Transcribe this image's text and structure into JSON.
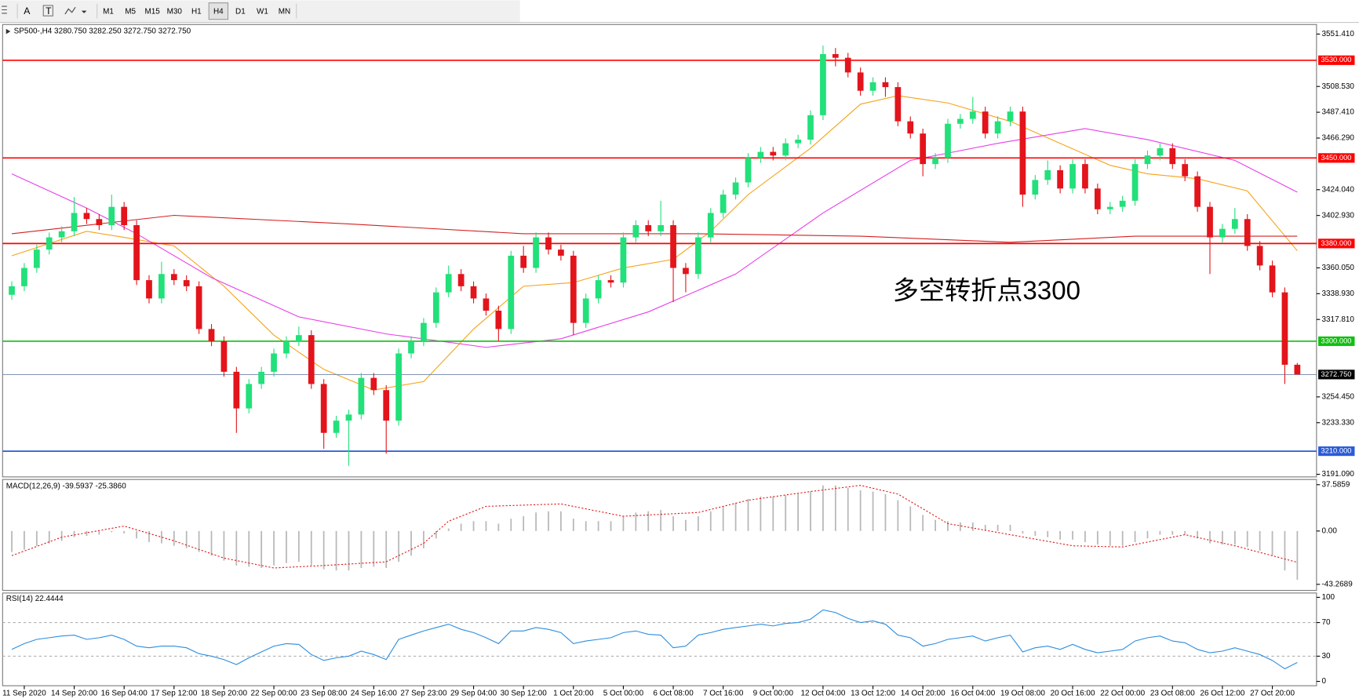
{
  "toolbar": {
    "tools": [
      "A",
      "T"
    ],
    "timeframes": [
      "M1",
      "M5",
      "M15",
      "M30",
      "H1",
      "H4",
      "D1",
      "W1",
      "MN"
    ],
    "active": "H4"
  },
  "chart_data": [
    {
      "type": "candlestick",
      "title": "SP500-,H4  3280.750 3282.250 3272.750 3272.750",
      "annotation": "多空转折点3300",
      "up_color": "#22e07a",
      "down_color": "#e3141b",
      "categories": [
        null,
        "11 Sep 2020",
        null,
        null,
        null,
        "14 Sep 20:00",
        null,
        null,
        null,
        "16 Sep 04:00",
        null,
        null,
        null,
        "17 Sep 12:00",
        null,
        null,
        null,
        "18 Sep 20:00",
        null,
        null,
        null,
        "22 Sep 00:00",
        null,
        null,
        null,
        "23 Sep 08:00",
        null,
        null,
        null,
        "24 Sep 16:00",
        null,
        null,
        null,
        "27 Sep 23:00",
        null,
        null,
        null,
        "29 Sep 04:00",
        null,
        null,
        null,
        "30 Sep 12:00",
        null,
        null,
        null,
        "1 Oct 20:00",
        null,
        null,
        null,
        "5 Oct 00:00",
        null,
        null,
        null,
        "6 Oct 08:00",
        null,
        null,
        null,
        "7 Oct 16:00",
        null,
        null,
        null,
        "9 Oct 00:00",
        null,
        null,
        null,
        "12 Oct 04:00",
        null,
        null,
        null,
        "13 Oct 12:00",
        null,
        null,
        null,
        "14 Oct 20:00",
        null,
        null,
        null,
        "16 Oct 04:00",
        null,
        null,
        null,
        "19 Oct 08:00",
        null,
        null,
        null,
        "20 Oct 16:00",
        null,
        null,
        null,
        "22 Oct 00:00",
        null,
        null,
        null,
        "23 Oct 08:00",
        null,
        null,
        null,
        "26 Oct 12:00",
        null,
        null,
        null,
        "27 Oct 20:00",
        null,
        null
      ],
      "open": [
        3338,
        3345,
        3360,
        3375,
        3385,
        3390,
        3405,
        3400,
        3395,
        3410,
        3395,
        3350,
        3335,
        3355,
        3350,
        3345,
        3310,
        3300,
        3275,
        3245,
        3265,
        3275,
        3290,
        3300,
        3305,
        3265,
        3225,
        3235,
        3240,
        3270,
        3260,
        3235,
        3290,
        3300,
        3315,
        3340,
        3355,
        3345,
        3335,
        3325,
        3310,
        3370,
        3360,
        3385,
        3375,
        3370,
        3315,
        3335,
        3350,
        3348,
        3385,
        3395,
        3390,
        3395,
        3360,
        3355,
        3385,
        3405,
        3420,
        3430,
        3450,
        3455,
        3452,
        3462,
        3465,
        3485,
        3535,
        3532,
        3520,
        3505,
        3512,
        3508,
        3480,
        3470,
        3445,
        3450,
        3478,
        3482,
        3488,
        3470,
        3480,
        3488,
        3420,
        3432,
        3440,
        3425,
        3445,
        3425,
        3408,
        3410,
        3415,
        3445,
        3452,
        3458,
        3445,
        3435,
        3410,
        3385,
        3392,
        3400,
        3378,
        3362,
        3340,
        3280.75
      ],
      "high": [
        3349,
        3364,
        3379,
        3389,
        3394,
        3418,
        3409,
        3404,
        3420,
        3414,
        3399,
        3354,
        3365,
        3359,
        3354,
        3349,
        3314,
        3304,
        3279,
        3269,
        3279,
        3294,
        3304,
        3312,
        3309,
        3269,
        3239,
        3244,
        3274,
        3274,
        3264,
        3294,
        3304,
        3319,
        3344,
        3362,
        3359,
        3349,
        3339,
        3329,
        3374,
        3378,
        3389,
        3389,
        3379,
        3374,
        3339,
        3354,
        3354,
        3389,
        3399,
        3399,
        3415,
        3399,
        3364,
        3389,
        3409,
        3424,
        3434,
        3454,
        3459,
        3459,
        3466,
        3469,
        3489,
        3542,
        3540,
        3536,
        3524,
        3516,
        3516,
        3512,
        3484,
        3474,
        3454,
        3482,
        3486,
        3500,
        3492,
        3484,
        3492,
        3492,
        3436,
        3448,
        3444,
        3449,
        3449,
        3429,
        3414,
        3419,
        3449,
        3456,
        3462,
        3462,
        3449,
        3439,
        3414,
        3396,
        3409,
        3404,
        3382,
        3366,
        3344,
        3282.25
      ],
      "low": [
        3334,
        3341,
        3356,
        3371,
        3381,
        3386,
        3396,
        3391,
        3391,
        3391,
        3346,
        3331,
        3331,
        3346,
        3341,
        3306,
        3296,
        3271,
        3225,
        3241,
        3261,
        3271,
        3286,
        3296,
        3261,
        3212,
        3221,
        3198,
        3236,
        3256,
        3208,
        3231,
        3286,
        3296,
        3311,
        3336,
        3341,
        3331,
        3321,
        3300,
        3306,
        3356,
        3356,
        3371,
        3366,
        3305,
        3311,
        3331,
        3344,
        3344,
        3381,
        3386,
        3386,
        3332,
        3340,
        3351,
        3381,
        3401,
        3416,
        3426,
        3446,
        3448,
        3448,
        3458,
        3461,
        3481,
        3525,
        3516,
        3501,
        3501,
        3500,
        3476,
        3466,
        3435,
        3441,
        3446,
        3474,
        3478,
        3466,
        3466,
        3476,
        3410,
        3416,
        3428,
        3421,
        3421,
        3421,
        3404,
        3404,
        3406,
        3411,
        3441,
        3448,
        3441,
        3431,
        3406,
        3355,
        3381,
        3388,
        3374,
        3358,
        3336,
        3265,
        3272.75
      ],
      "close": [
        3345,
        3360,
        3375,
        3385,
        3390,
        3405,
        3400,
        3395,
        3410,
        3395,
        3350,
        3335,
        3355,
        3350,
        3345,
        3310,
        3300,
        3275,
        3245,
        3265,
        3275,
        3290,
        3300,
        3305,
        3265,
        3225,
        3235,
        3240,
        3270,
        3260,
        3235,
        3290,
        3300,
        3315,
        3340,
        3355,
        3345,
        3335,
        3325,
        3310,
        3370,
        3360,
        3385,
        3375,
        3370,
        3315,
        3335,
        3350,
        3348,
        3385,
        3395,
        3390,
        3395,
        3360,
        3355,
        3385,
        3405,
        3420,
        3430,
        3450,
        3455,
        3452,
        3462,
        3465,
        3485,
        3535,
        3532,
        3520,
        3505,
        3512,
        3508,
        3480,
        3470,
        3445,
        3450,
        3478,
        3482,
        3488,
        3470,
        3480,
        3488,
        3420,
        3432,
        3440,
        3425,
        3445,
        3425,
        3408,
        3410,
        3415,
        3445,
        3452,
        3458,
        3445,
        3435,
        3410,
        3385,
        3392,
        3400,
        3378,
        3362,
        3340,
        3280.75,
        3272.75
      ],
      "series": [
        {
          "color": "#f5a31a",
          "x": [
            0,
            6,
            9,
            13,
            17,
            21,
            25,
            29,
            33,
            37,
            41,
            45,
            49,
            53,
            56,
            59,
            64,
            68,
            71,
            75,
            80,
            84,
            88,
            91,
            95,
            99,
            103
          ],
          "values": [
            3370,
            3390,
            3385,
            3378,
            3345,
            3305,
            3277,
            3260,
            3267,
            3310,
            3345,
            3348,
            3360,
            3367,
            3390,
            3420,
            3458,
            3494,
            3501,
            3495,
            3480,
            3462,
            3444,
            3437,
            3433,
            3423,
            3374
          ]
        },
        {
          "color": "#e83ee8",
          "x": [
            0,
            6,
            10,
            16,
            23,
            30,
            38,
            44,
            51,
            58,
            65,
            72,
            79,
            86,
            91,
            98,
            103
          ],
          "values": [
            3437,
            3409,
            3388,
            3352,
            3320,
            3306,
            3295,
            3302,
            3324,
            3355,
            3405,
            3448,
            3462,
            3474,
            3465,
            3448,
            3422
          ]
        },
        {
          "color": "#d42020",
          "x": [
            0,
            13,
            27,
            41,
            55,
            68,
            80,
            90,
            103
          ],
          "values": [
            3388,
            3403,
            3396,
            3388,
            3388,
            3386,
            3381,
            3386,
            3386
          ]
        }
      ],
      "levels": [
        {
          "value": 3530,
          "label": "3530.000",
          "color": "#ff0000"
        },
        {
          "value": 3450,
          "label": "3450.000",
          "color": "#ff0000"
        },
        {
          "value": 3380,
          "label": "3380.000",
          "color": "#ff0000"
        },
        {
          "value": 3300,
          "label": "3300.000",
          "color": "#10c010"
        },
        {
          "value": 3210,
          "label": "3210.000",
          "color": "#2a5bd7"
        }
      ],
      "current": {
        "value": 3272.75,
        "label": "3272.750",
        "color": "#6f86a8"
      },
      "ylim": [
        3191.09,
        3551.41
      ],
      "yticks": [
        {
          "value": 3551.41,
          "label": "3551.410"
        },
        {
          "value": 3508.53,
          "label": "3508.530"
        },
        {
          "value": 3487.41,
          "label": "3487.410"
        },
        {
          "value": 3466.29,
          "label": "3466.290"
        },
        {
          "value": 3424.04,
          "label": "3424.040"
        },
        {
          "value": 3402.93,
          "label": "3402.930"
        },
        {
          "value": 3360.05,
          "label": "3360.050"
        },
        {
          "value": 3338.93,
          "label": "3338.930"
        },
        {
          "value": 3317.81,
          "label": "3317.810"
        },
        {
          "value": 3254.45,
          "label": "3254.450"
        },
        {
          "value": 3233.33,
          "label": "3233.330"
        },
        {
          "value": 3191.09,
          "label": "3191.090"
        }
      ]
    },
    {
      "type": "macd",
      "title": "MACD(12,26,9) -39.5937 -25.3860",
      "color": "#b8b8b8",
      "values": [
        -17,
        -15,
        -12,
        -10,
        -8,
        -5,
        -4,
        -3,
        -1,
        -2,
        -6,
        -9,
        -10,
        -12,
        -14,
        -17,
        -20,
        -24,
        -28,
        -29,
        -30,
        -28,
        -26,
        -25,
        -28,
        -31,
        -32,
        -32,
        -30,
        -29,
        -30,
        -25,
        -20,
        -14,
        -6,
        2,
        6,
        8,
        8,
        6,
        10,
        12,
        15,
        16,
        16,
        10,
        8,
        8,
        8,
        12,
        15,
        16,
        17,
        12,
        9,
        12,
        16,
        20,
        23,
        26,
        28,
        28,
        29,
        30,
        32,
        37,
        37,
        35,
        33,
        32,
        30,
        25,
        20,
        13,
        9,
        8,
        7,
        7,
        5,
        5,
        5,
        -2,
        -4,
        -5,
        -7,
        -7,
        -9,
        -11,
        -12,
        -12,
        -9,
        -6,
        -3,
        -3,
        -3,
        -6,
        -10,
        -11,
        -11,
        -13,
        -16,
        -20,
        -32,
        -39.5937
      ],
      "signal": {
        "color": "#e01b1b",
        "x": [
          0,
          4,
          9,
          13,
          17,
          21,
          25,
          30,
          33,
          35,
          38,
          44,
          49,
          55,
          59,
          64,
          68,
          71,
          75,
          80,
          85,
          89,
          94,
          98,
          103
        ],
        "values": [
          -20,
          -5,
          4,
          -8,
          -22,
          -30,
          -28,
          -25,
          -10,
          8,
          20,
          22,
          12,
          15,
          25,
          32,
          37,
          30,
          6,
          -3,
          -12,
          -13,
          -3,
          -12,
          -25.386
        ]
      },
      "ylim": [
        -43.2689,
        37.5859
      ],
      "yticks": [
        37.5859,
        {
          "value": 0,
          "label": "0.00"
        },
        -43.2689
      ]
    },
    {
      "type": "rsi",
      "title": "RSI(14) 22.4444",
      "color": "#2b8de0",
      "values": [
        38,
        45,
        50,
        52,
        54,
        55,
        50,
        52,
        55,
        50,
        42,
        40,
        42,
        42,
        40,
        33,
        30,
        26,
        20,
        28,
        35,
        42,
        45,
        44,
        32,
        25,
        28,
        30,
        36,
        32,
        26,
        50,
        55,
        60,
        64,
        68,
        62,
        58,
        52,
        45,
        60,
        60,
        64,
        62,
        58,
        45,
        48,
        50,
        52,
        58,
        60,
        56,
        55,
        40,
        42,
        55,
        58,
        62,
        64,
        66,
        68,
        66,
        69,
        70,
        74,
        85,
        82,
        75,
        70,
        72,
        68,
        55,
        52,
        42,
        45,
        50,
        52,
        54,
        48,
        52,
        55,
        35,
        40,
        42,
        38,
        44,
        38,
        34,
        36,
        38,
        48,
        52,
        54,
        48,
        46,
        38,
        34,
        36,
        40,
        36,
        32,
        25,
        15,
        22.4444
      ],
      "levels": [
        70,
        30
      ],
      "ylim": [
        0,
        100
      ],
      "yticks": [
        100,
        70,
        30,
        0
      ]
    }
  ]
}
